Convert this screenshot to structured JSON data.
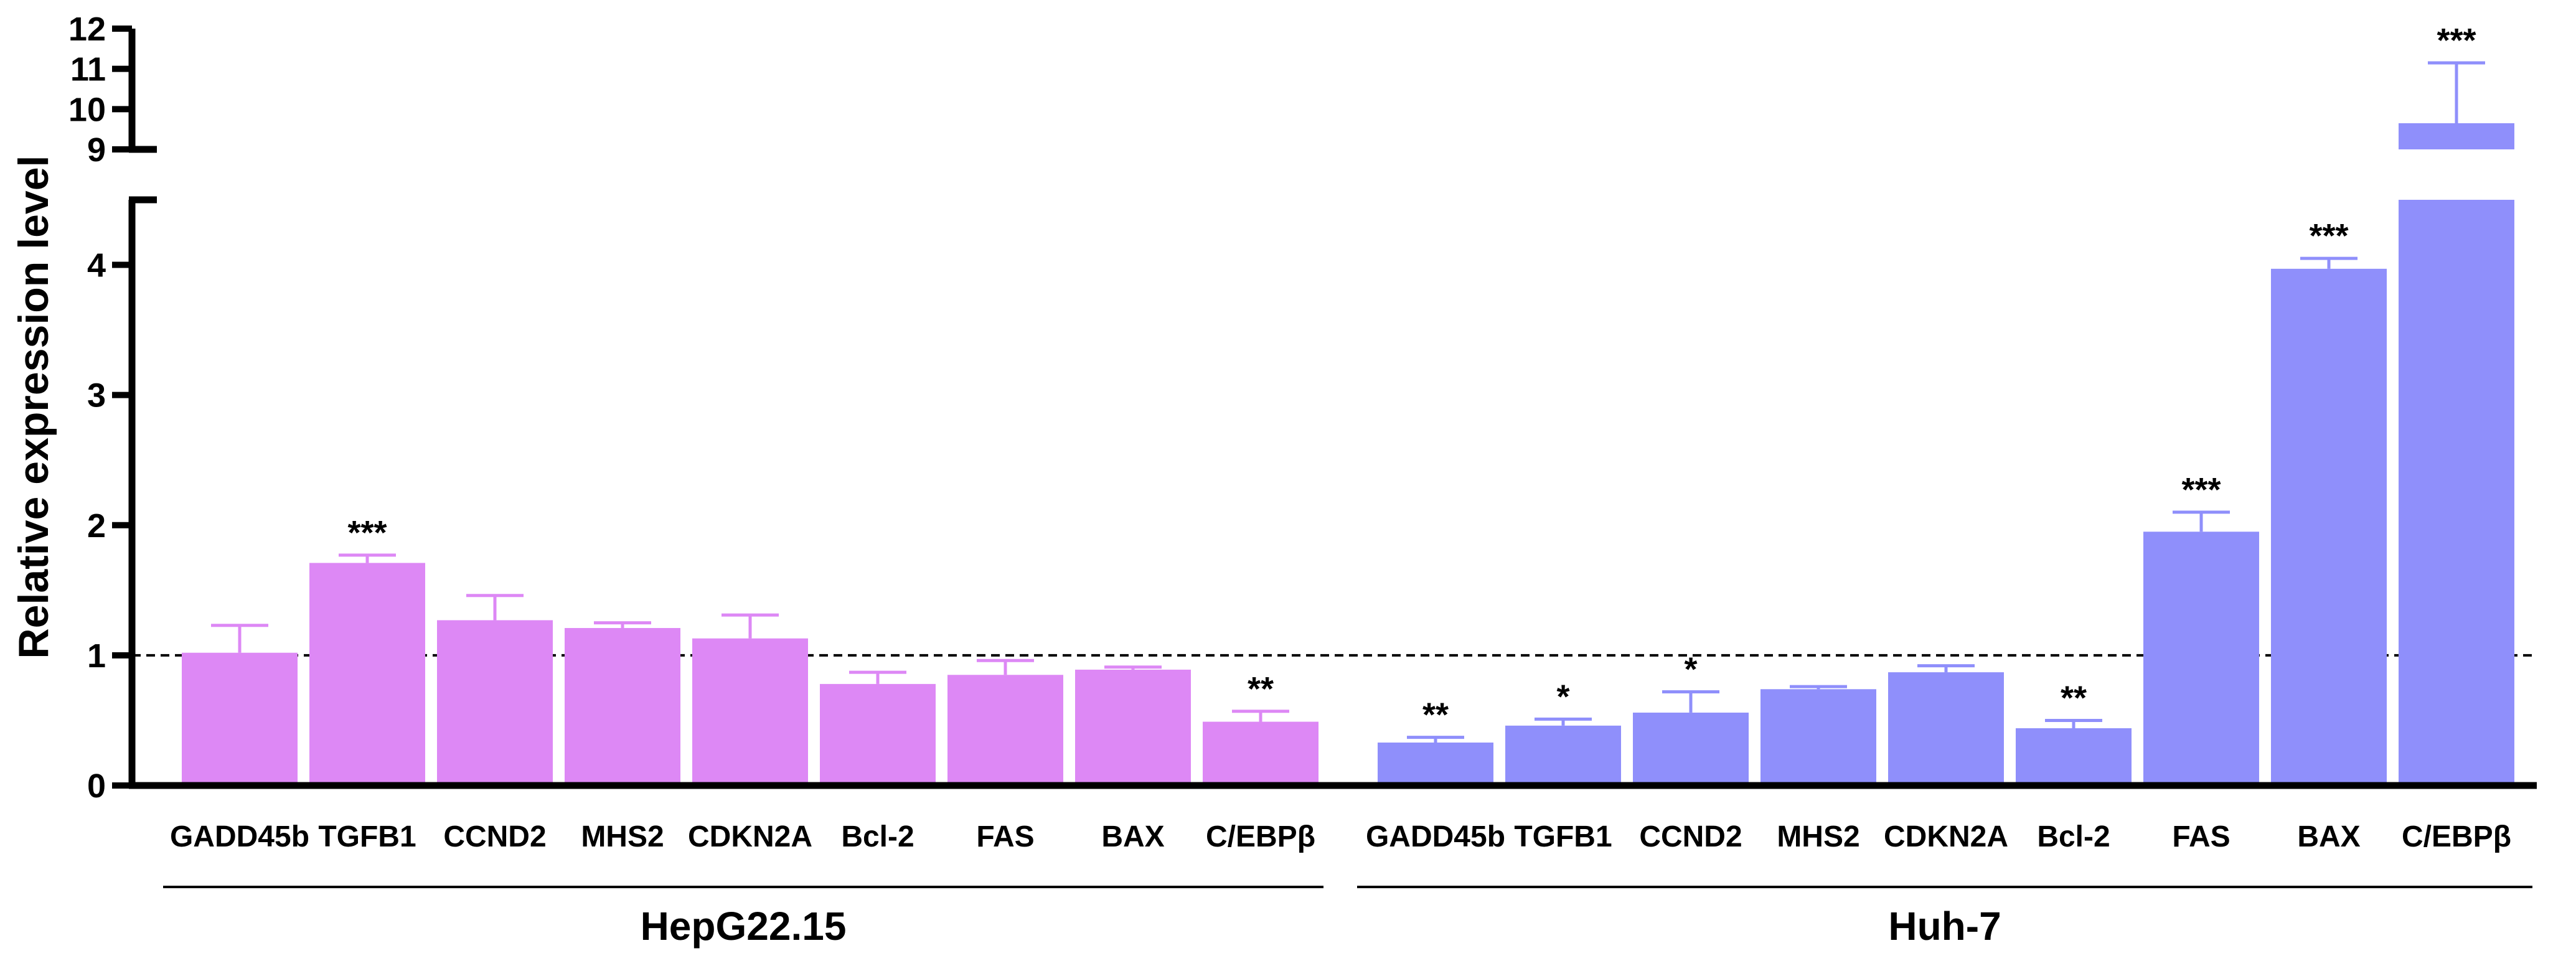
{
  "chart_data": {
    "type": "bar",
    "ylabel": "Relative expression level",
    "y_axis_segments": [
      {
        "range": [
          0,
          4.5
        ],
        "ticks": [
          "0",
          "1",
          "2",
          "3",
          "4"
        ]
      },
      {
        "range": [
          9,
          12
        ],
        "ticks": [
          "9",
          "10",
          "11",
          "12"
        ]
      }
    ],
    "reference_line": 1,
    "colors": {
      "HepG22.15": "#dd88f5",
      "Huh-7": "#8f8ffb"
    },
    "groups": [
      {
        "name": "HepG22.15",
        "categories": [
          "GADD45b",
          "TGFB1",
          "CCND2",
          "MHS2",
          "CDKN2A",
          "Bcl-2",
          "FAS",
          "BAX",
          "C/EBPβ"
        ],
        "values": [
          1.02,
          1.71,
          1.27,
          1.21,
          1.13,
          0.78,
          0.85,
          0.89,
          0.49
        ],
        "errors": [
          0.21,
          0.06,
          0.19,
          0.04,
          0.18,
          0.09,
          0.11,
          0.02,
          0.08
        ],
        "significance": [
          "",
          "***",
          "",
          "",
          "",
          "",
          "",
          "",
          "**"
        ]
      },
      {
        "name": "Huh-7",
        "categories": [
          "GADD45b",
          "TGFB1",
          "CCND2",
          "MHS2",
          "CDKN2A",
          "Bcl-2",
          "FAS",
          "BAX",
          "C/EBPβ"
        ],
        "values": [
          0.33,
          0.46,
          0.56,
          0.74,
          0.87,
          0.44,
          1.95,
          3.97,
          9.65
        ],
        "errors": [
          0.04,
          0.05,
          0.16,
          0.02,
          0.05,
          0.06,
          0.15,
          0.08,
          1.5
        ],
        "significance": [
          "**",
          "*",
          "*",
          "",
          "",
          "**",
          "***",
          "***",
          "***"
        ]
      }
    ]
  }
}
